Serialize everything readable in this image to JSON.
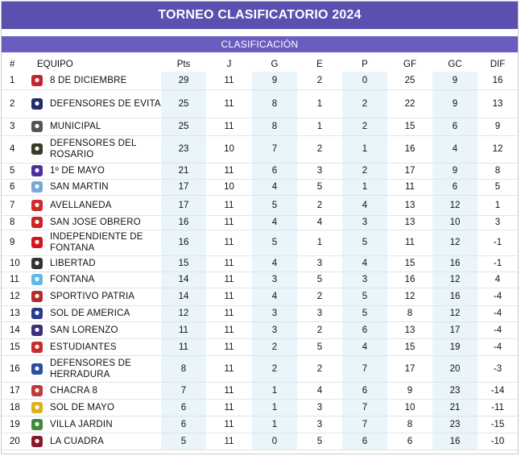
{
  "title": "TORNEO CLASIFICATORIO 2024",
  "subtitle": "CLASIFICACIÓN",
  "columns": [
    "#",
    "EQUIPO",
    "Pts",
    "J",
    "G",
    "E",
    "P",
    "GF",
    "GC",
    "DIF"
  ],
  "rows": [
    {
      "pos": "1",
      "team": "8 DE DICIEMBRE",
      "pts": "29",
      "j": "11",
      "g": "9",
      "e": "2",
      "p": "0",
      "gf": "25",
      "gc": "9",
      "dif": "16",
      "badge": "#c0262d",
      "h": 22
    },
    {
      "pos": "2",
      "team": "DEFENSORES DE EVITA",
      "pts": "25",
      "j": "11",
      "g": "8",
      "e": "1",
      "p": "2",
      "gf": "22",
      "gc": "9",
      "dif": "13",
      "badge": "#1f2d6b",
      "h": 35
    },
    {
      "pos": "3",
      "team": "MUNICIPAL",
      "pts": "25",
      "j": "11",
      "g": "8",
      "e": "1",
      "p": "2",
      "gf": "15",
      "gc": "6",
      "dif": "9",
      "badge": "#555555",
      "h": 22
    },
    {
      "pos": "4",
      "team": "DEFENSORES DEL ROSARIO",
      "pts": "23",
      "j": "10",
      "g": "7",
      "e": "2",
      "p": "1",
      "gf": "16",
      "gc": "4",
      "dif": "12",
      "badge": "#3a3a2a",
      "h": 34
    },
    {
      "pos": "5",
      "team": "1º DE MAYO",
      "pts": "21",
      "j": "11",
      "g": "6",
      "e": "3",
      "p": "2",
      "gf": "17",
      "gc": "9",
      "dif": "8",
      "badge": "#4b2fa0",
      "h": 20
    },
    {
      "pos": "6",
      "team": "SAN MARTIN",
      "pts": "17",
      "j": "10",
      "g": "4",
      "e": "5",
      "p": "1",
      "gf": "11",
      "gc": "6",
      "dif": "5",
      "badge": "#7aa7d6",
      "h": 20
    },
    {
      "pos": "7",
      "team": "AVELLANEDA",
      "pts": "17",
      "j": "11",
      "g": "5",
      "e": "2",
      "p": "4",
      "gf": "13",
      "gc": "12",
      "dif": "1",
      "badge": "#d02a2a",
      "h": 25
    },
    {
      "pos": "8",
      "team": "SAN JOSE OBRERO",
      "pts": "16",
      "j": "11",
      "g": "4",
      "e": "4",
      "p": "3",
      "gf": "13",
      "gc": "10",
      "dif": "3",
      "badge": "#cc2222",
      "h": 18
    },
    {
      "pos": "9",
      "team": "INDEPENDIENTE DE FONTANA",
      "pts": "16",
      "j": "11",
      "g": "5",
      "e": "1",
      "p": "5",
      "gf": "11",
      "gc": "12",
      "dif": "-1",
      "badge": "#d4141e",
      "h": 32
    },
    {
      "pos": "10",
      "team": "LIBERTAD",
      "pts": "15",
      "j": "11",
      "g": "4",
      "e": "3",
      "p": "4",
      "gf": "15",
      "gc": "16",
      "dif": "-1",
      "badge": "#333333",
      "h": 20
    },
    {
      "pos": "11",
      "team": "FONTANA",
      "pts": "14",
      "j": "11",
      "g": "3",
      "e": "5",
      "p": "3",
      "gf": "16",
      "gc": "12",
      "dif": "4",
      "badge": "#63b6e6",
      "h": 20
    },
    {
      "pos": "12",
      "team": "SPORTIVO PATRIA",
      "pts": "14",
      "j": "11",
      "g": "4",
      "e": "2",
      "p": "5",
      "gf": "12",
      "gc": "16",
      "dif": "-4",
      "badge": "#b82a2a",
      "h": 22
    },
    {
      "pos": "13",
      "team": "SOL DE AMERICA",
      "pts": "12",
      "j": "11",
      "g": "3",
      "e": "3",
      "p": "5",
      "gf": "8",
      "gc": "12",
      "dif": "-4",
      "badge": "#2b3b8c",
      "h": 20
    },
    {
      "pos": "14",
      "team": "SAN LORENZO",
      "pts": "11",
      "j": "11",
      "g": "3",
      "e": "2",
      "p": "6",
      "gf": "13",
      "gc": "17",
      "dif": "-4",
      "badge": "#3a2f7a",
      "h": 21
    },
    {
      "pos": "15",
      "team": "ESTUDIANTES",
      "pts": "11",
      "j": "11",
      "g": "2",
      "e": "5",
      "p": "4",
      "gf": "15",
      "gc": "19",
      "dif": "-4",
      "badge": "#cc2a2a",
      "h": 21
    },
    {
      "pos": "16",
      "team": "DEFENSORES DE HERRADURA",
      "pts": "8",
      "j": "11",
      "g": "2",
      "e": "2",
      "p": "7",
      "gf": "17",
      "gc": "20",
      "dif": "-3",
      "badge": "#2a4ea0",
      "h": 33
    },
    {
      "pos": "17",
      "team": "CHACRA 8",
      "pts": "7",
      "j": "11",
      "g": "1",
      "e": "4",
      "p": "6",
      "gf": "9",
      "gc": "23",
      "dif": "-14",
      "badge": "#c03a3a",
      "h": 21
    },
    {
      "pos": "18",
      "team": "SOL DE MAYO",
      "pts": "6",
      "j": "11",
      "g": "1",
      "e": "3",
      "p": "7",
      "gf": "10",
      "gc": "21",
      "dif": "-11",
      "badge": "#d9b21c",
      "h": 21
    },
    {
      "pos": "19",
      "team": "VILLA JARDIN",
      "pts": "6",
      "j": "11",
      "g": "1",
      "e": "3",
      "p": "7",
      "gf": "8",
      "gc": "23",
      "dif": "-15",
      "badge": "#3f8a3a",
      "h": 21
    },
    {
      "pos": "20",
      "team": "LA CUADRA",
      "pts": "5",
      "j": "11",
      "g": "0",
      "e": "5",
      "p": "6",
      "gf": "6",
      "gc": "16",
      "dif": "-10",
      "badge": "#8a1a2a",
      "h": 21
    }
  ]
}
